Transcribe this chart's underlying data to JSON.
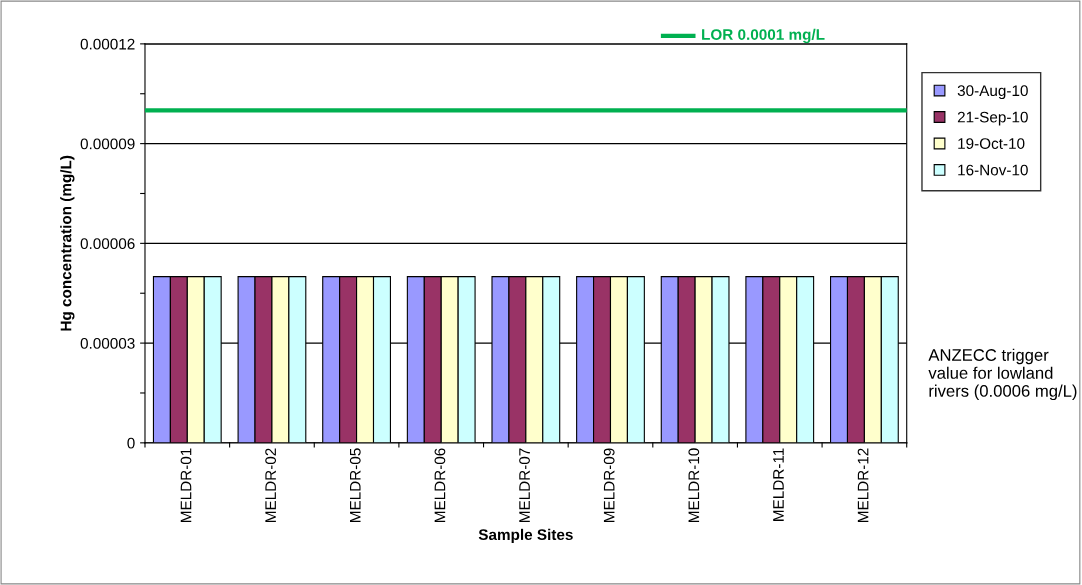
{
  "chart_data": {
    "type": "bar",
    "xlabel": "Sample Sites",
    "ylabel": "Hg concentration (mg/L)",
    "categories": [
      "MELDR-01",
      "MELDR-02",
      "MELDR-05",
      "MELDR-06",
      "MELDR-07",
      "MELDR-09",
      "MELDR-10",
      "MELDR-11",
      "MELDR-12"
    ],
    "series": [
      {
        "name": "30-Aug-10",
        "color": "#9999ff",
        "values": [
          5e-05,
          5e-05,
          5e-05,
          5e-05,
          5e-05,
          5e-05,
          5e-05,
          5e-05,
          5e-05
        ]
      },
      {
        "name": "21-Sep-10",
        "color": "#993366",
        "values": [
          5e-05,
          5e-05,
          5e-05,
          5e-05,
          5e-05,
          5e-05,
          5e-05,
          5e-05,
          5e-05
        ]
      },
      {
        "name": "19-Oct-10",
        "color": "#ffffcc",
        "values": [
          5e-05,
          5e-05,
          5e-05,
          5e-05,
          5e-05,
          5e-05,
          5e-05,
          5e-05,
          5e-05
        ]
      },
      {
        "name": "16-Nov-10",
        "color": "#ccffff",
        "values": [
          5e-05,
          5e-05,
          5e-05,
          5e-05,
          5e-05,
          5e-05,
          5e-05,
          5e-05,
          5e-05
        ]
      }
    ],
    "ylim": [
      0,
      0.00012
    ],
    "yticks": [
      0,
      {
        "value": 1.5e-05,
        "label": null
      },
      {
        "value": 3e-05,
        "label": "0.00003"
      },
      {
        "value": 4.5e-05,
        "label": null
      },
      {
        "value": 6e-05,
        "label": "0.00006"
      },
      {
        "value": 7.5e-05,
        "label": null
      },
      {
        "value": 9e-05,
        "label": "0.00009"
      },
      {
        "value": 0.000105,
        "label": null
      },
      {
        "value": 0.00012,
        "label": "0.00012"
      }
    ],
    "grid": "y",
    "legend": "right",
    "ref_lines": [
      {
        "axis": "y",
        "value": 0.0001,
        "label": "LOR 0.0001 mg/L",
        "color": "#00b050"
      }
    ],
    "annotations": [
      "ANZECC trigger value for lowland rivers (0.0006 mg/L)"
    ]
  }
}
